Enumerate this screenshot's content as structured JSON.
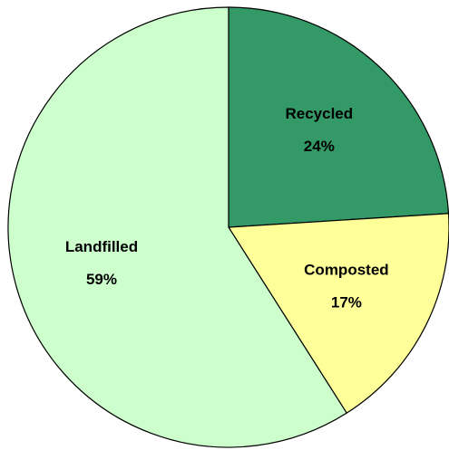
{
  "chart_data": {
    "type": "pie",
    "categories": [
      "Recycled",
      "Composted",
      "Landfilled"
    ],
    "values": [
      24,
      17,
      59
    ],
    "value_labels": [
      "24%",
      "17%",
      "59%"
    ],
    "colors": [
      "#339966",
      "#ffff99",
      "#ccffcc"
    ]
  }
}
